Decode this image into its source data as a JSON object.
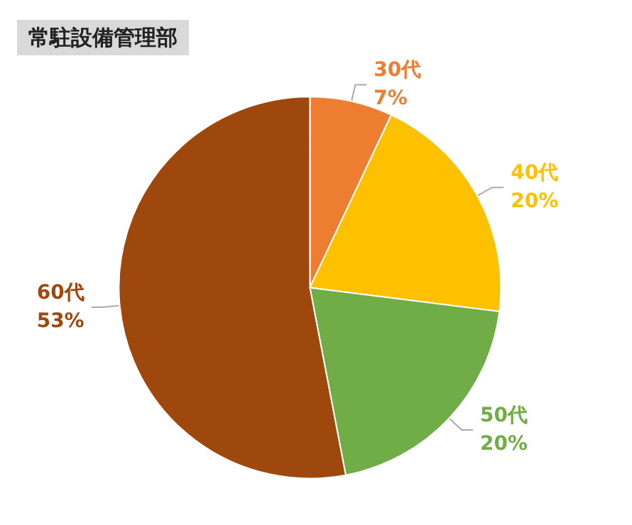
{
  "chart_data": {
    "type": "pie",
    "title": "常駐設備管理部",
    "categories": [
      "30代",
      "40代",
      "50代",
      "60代"
    ],
    "values": [
      7,
      20,
      20,
      53
    ],
    "value_labels": [
      "7%",
      "20%",
      "20%",
      "53%"
    ],
    "colors": [
      "#ed7d31",
      "#ffc000",
      "#70ad47",
      "#9e480e"
    ],
    "legend": false
  }
}
